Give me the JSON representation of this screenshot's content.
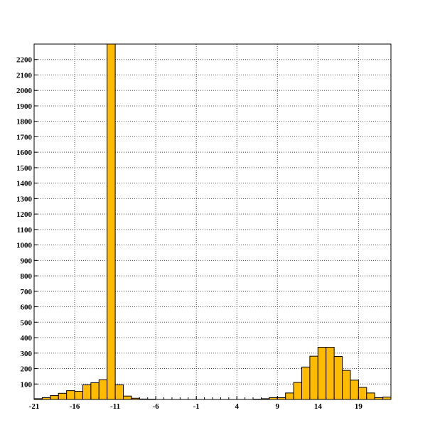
{
  "chart_data": {
    "type": "bar",
    "title": "",
    "xlabel": "",
    "ylabel": "",
    "xlim": [
      -21,
      23
    ],
    "ylim": [
      0,
      2300
    ],
    "grid": true,
    "x_ticks": [
      "-21",
      "-16",
      "-11",
      "-6",
      "-1",
      "4",
      "9",
      "14",
      "19"
    ],
    "y_ticks": [
      "100",
      "200",
      "300",
      "400",
      "500",
      "600",
      "700",
      "800",
      "900",
      "1000",
      "1100",
      "1200",
      "1300",
      "1400",
      "1500",
      "1600",
      "1700",
      "1800",
      "1900",
      "2000",
      "2100",
      "2200"
    ],
    "bin_width": 1,
    "bins": [
      {
        "x": -21,
        "value": 5
      },
      {
        "x": -20,
        "value": 12
      },
      {
        "x": -19,
        "value": 25
      },
      {
        "x": -18,
        "value": 40
      },
      {
        "x": -17,
        "value": 57
      },
      {
        "x": -16,
        "value": 53
      },
      {
        "x": -15,
        "value": 95
      },
      {
        "x": -14,
        "value": 108
      },
      {
        "x": -13,
        "value": 128
      },
      {
        "x": -12,
        "value": 2300
      },
      {
        "x": -11,
        "value": 95
      },
      {
        "x": -10,
        "value": 22
      },
      {
        "x": -9,
        "value": 8
      },
      {
        "x": -8,
        "value": 3
      },
      {
        "x": -7,
        "value": 2
      },
      {
        "x": 6,
        "value": 2
      },
      {
        "x": 7,
        "value": 5
      },
      {
        "x": 8,
        "value": 12
      },
      {
        "x": 9,
        "value": 12
      },
      {
        "x": 10,
        "value": 42
      },
      {
        "x": 11,
        "value": 110
      },
      {
        "x": 12,
        "value": 210
      },
      {
        "x": 13,
        "value": 280
      },
      {
        "x": 14,
        "value": 338
      },
      {
        "x": 15,
        "value": 338
      },
      {
        "x": 16,
        "value": 278
      },
      {
        "x": 17,
        "value": 188
      },
      {
        "x": 18,
        "value": 125
      },
      {
        "x": 19,
        "value": 78
      },
      {
        "x": 20,
        "value": 42
      },
      {
        "x": 21,
        "value": 12
      },
      {
        "x": 22,
        "value": 15
      }
    ],
    "colors": {
      "bar_fill": "#FFBB00",
      "bar_stroke": "#000000",
      "grid": "#555555",
      "axis": "#000000"
    }
  }
}
